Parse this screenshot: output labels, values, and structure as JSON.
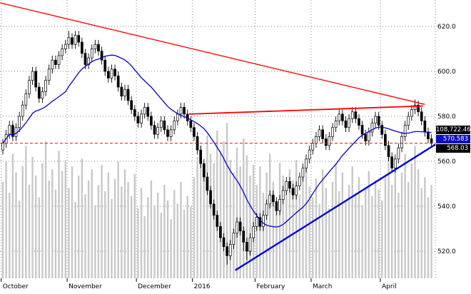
{
  "chart_data": {
    "type": "candlestick",
    "title": "",
    "xlabel": "",
    "ylabel": "",
    "grid": "dotted",
    "volume_color": "#c8c8c8",
    "y_axis": {
      "tick_values": [
        620,
        600,
        580,
        560,
        540,
        520
      ],
      "range": [
        510,
        632
      ]
    },
    "x_axis": {
      "labels": [
        {
          "text": "October",
          "index": 0
        },
        {
          "text": "November",
          "index": 20
        },
        {
          "text": "December",
          "index": 41
        },
        {
          "text": "2016",
          "index": 58
        },
        {
          "text": "February",
          "index": 77
        },
        {
          "text": "March",
          "index": 94
        },
        {
          "text": "April",
          "index": 115
        }
      ]
    },
    "candles": [
      [
        565,
        570,
        563,
        568
      ],
      [
        568,
        574,
        566,
        572
      ],
      [
        572,
        578,
        570,
        576
      ],
      [
        576,
        578,
        569,
        571
      ],
      [
        571,
        577,
        569,
        575
      ],
      [
        575,
        582,
        573,
        580
      ],
      [
        580,
        587,
        578,
        585
      ],
      [
        585,
        592,
        583,
        590
      ],
      [
        590,
        598,
        588,
        596
      ],
      [
        596,
        602,
        594,
        600
      ],
      [
        600,
        602,
        591,
        593
      ],
      [
        593,
        595,
        586,
        588
      ],
      [
        588,
        593,
        586,
        591
      ],
      [
        591,
        598,
        589,
        596
      ],
      [
        596,
        603,
        594,
        601
      ],
      [
        601,
        607,
        599,
        605
      ],
      [
        605,
        607,
        601,
        603
      ],
      [
        603,
        609,
        601,
        607
      ],
      [
        607,
        612,
        605,
        610
      ],
      [
        610,
        614,
        608,
        612
      ],
      [
        612,
        618,
        610,
        615
      ],
      [
        615,
        617,
        610,
        612
      ],
      [
        612,
        618,
        610,
        616
      ],
      [
        616,
        618,
        611,
        613
      ],
      [
        613,
        615,
        606,
        608
      ],
      [
        608,
        610,
        601,
        603
      ],
      [
        603,
        608,
        601,
        606
      ],
      [
        606,
        612,
        604,
        610
      ],
      [
        610,
        614,
        608,
        612
      ],
      [
        612,
        614,
        607,
        609
      ],
      [
        609,
        611,
        603,
        605
      ],
      [
        605,
        607,
        598,
        600
      ],
      [
        600,
        602,
        595,
        597
      ],
      [
        597,
        603,
        595,
        601
      ],
      [
        601,
        603,
        596,
        598
      ],
      [
        598,
        600,
        591,
        593
      ],
      [
        593,
        595,
        587,
        589
      ],
      [
        589,
        594,
        587,
        592
      ],
      [
        592,
        594,
        585,
        587
      ],
      [
        587,
        589,
        581,
        583
      ],
      [
        583,
        585,
        578,
        580
      ],
      [
        580,
        582,
        575,
        577
      ],
      [
        577,
        583,
        575,
        581
      ],
      [
        581,
        586,
        579,
        584
      ],
      [
        584,
        586,
        578,
        580
      ],
      [
        580,
        582,
        574,
        576
      ],
      [
        576,
        578,
        570,
        572
      ],
      [
        572,
        577,
        570,
        575
      ],
      [
        575,
        580,
        573,
        578
      ],
      [
        578,
        580,
        572,
        574
      ],
      [
        574,
        576,
        569,
        571
      ],
      [
        571,
        576,
        569,
        574
      ],
      [
        574,
        580,
        572,
        578
      ],
      [
        578,
        583,
        576,
        581
      ],
      [
        581,
        586,
        579,
        584
      ],
      [
        584,
        586,
        579,
        581
      ],
      [
        581,
        583,
        576,
        578
      ],
      [
        578,
        580,
        573,
        575
      ],
      [
        575,
        577,
        569,
        571
      ],
      [
        571,
        573,
        563,
        565
      ],
      [
        565,
        567,
        557,
        559
      ],
      [
        559,
        561,
        551,
        553
      ],
      [
        553,
        555,
        545,
        547
      ],
      [
        547,
        549,
        539,
        541
      ],
      [
        541,
        543,
        534,
        536
      ],
      [
        536,
        538,
        529,
        531
      ],
      [
        531,
        533,
        524,
        526
      ],
      [
        526,
        528,
        520,
        522
      ],
      [
        522,
        524,
        514,
        518
      ],
      [
        518,
        525,
        516,
        523
      ],
      [
        523,
        530,
        521,
        528
      ],
      [
        528,
        535,
        526,
        533
      ],
      [
        533,
        535,
        527,
        529
      ],
      [
        529,
        531,
        520,
        524
      ],
      [
        524,
        526,
        516,
        520
      ],
      [
        520,
        528,
        518,
        526
      ],
      [
        526,
        533,
        524,
        531
      ],
      [
        531,
        537,
        529,
        535
      ],
      [
        535,
        537,
        529,
        531
      ],
      [
        531,
        538,
        529,
        536
      ],
      [
        536,
        543,
        534,
        541
      ],
      [
        541,
        547,
        539,
        545
      ],
      [
        545,
        547,
        540,
        542
      ],
      [
        542,
        544,
        536,
        538
      ],
      [
        538,
        545,
        536,
        543
      ],
      [
        543,
        549,
        541,
        547
      ],
      [
        547,
        553,
        545,
        551
      ],
      [
        551,
        553,
        546,
        548
      ],
      [
        548,
        550,
        543,
        545
      ],
      [
        545,
        551,
        543,
        549
      ],
      [
        549,
        555,
        547,
        553
      ],
      [
        553,
        559,
        551,
        557
      ],
      [
        557,
        563,
        555,
        561
      ],
      [
        561,
        567,
        559,
        565
      ],
      [
        565,
        570,
        563,
        568
      ],
      [
        568,
        573,
        566,
        571
      ],
      [
        571,
        576,
        569,
        574
      ],
      [
        574,
        576,
        568,
        570
      ],
      [
        570,
        572,
        565,
        567
      ],
      [
        567,
        573,
        565,
        571
      ],
      [
        571,
        577,
        569,
        575
      ],
      [
        575,
        580,
        573,
        578
      ],
      [
        578,
        583,
        576,
        581
      ],
      [
        581,
        583,
        576,
        578
      ],
      [
        578,
        580,
        573,
        575
      ],
      [
        575,
        581,
        573,
        579
      ],
      [
        579,
        584,
        577,
        582
      ],
      [
        582,
        584,
        577,
        579
      ],
      [
        579,
        581,
        574,
        576
      ],
      [
        576,
        578,
        570,
        572
      ],
      [
        572,
        574,
        567,
        569
      ],
      [
        569,
        575,
        567,
        573
      ],
      [
        573,
        579,
        571,
        577
      ],
      [
        577,
        582,
        575,
        580
      ],
      [
        580,
        582,
        574,
        576
      ],
      [
        576,
        578,
        570,
        572
      ],
      [
        572,
        574,
        565,
        567
      ],
      [
        567,
        569,
        560,
        562
      ],
      [
        562,
        564,
        555,
        557
      ],
      [
        557,
        563,
        555,
        561
      ],
      [
        561,
        568,
        559,
        566
      ],
      [
        566,
        573,
        564,
        571
      ],
      [
        571,
        578,
        569,
        576
      ],
      [
        576,
        582,
        574,
        580
      ],
      [
        580,
        585,
        578,
        583
      ],
      [
        583,
        587.5,
        581,
        585
      ],
      [
        585,
        587,
        580,
        582
      ],
      [
        582,
        584,
        576,
        578
      ],
      [
        578,
        580,
        571,
        573
      ],
      [
        573,
        575,
        568,
        570
      ],
      [
        570,
        572,
        566,
        568.03
      ]
    ],
    "volumes": [
      0.62,
      0.75,
      0.55,
      0.8,
      0.68,
      0.5,
      0.72,
      0.85,
      0.6,
      0.78,
      0.66,
      0.52,
      0.74,
      0.88,
      0.63,
      0.7,
      0.57,
      0.82,
      0.69,
      0.76,
      0.58,
      0.72,
      0.49,
      0.66,
      0.77,
      0.54,
      0.63,
      0.7,
      0.47,
      0.6,
      0.73,
      0.56,
      0.68,
      0.51,
      0.64,
      0.75,
      0.59,
      0.7,
      0.62,
      0.53,
      0.67,
      0.45,
      0.58,
      0.4,
      0.52,
      0.63,
      0.47,
      0.55,
      0.42,
      0.6,
      0.5,
      0.38,
      0.57,
      0.48,
      0.62,
      0.44,
      0.53,
      0.46,
      0.65,
      0.78,
      0.85,
      0.7,
      0.92,
      0.8,
      0.74,
      0.95,
      0.82,
      0.88,
      1.0,
      0.76,
      0.68,
      0.84,
      0.72,
      0.9,
      0.79,
      0.66,
      0.73,
      0.6,
      0.72,
      0.55,
      0.68,
      0.8,
      0.62,
      0.5,
      0.74,
      0.66,
      0.58,
      0.7,
      0.63,
      0.76,
      0.54,
      0.67,
      0.71,
      0.59,
      0.52,
      0.64,
      0.48,
      0.7,
      0.58,
      0.45,
      0.62,
      0.74,
      0.56,
      0.68,
      0.5,
      0.6,
      0.72,
      0.55,
      0.65,
      0.47,
      0.58,
      0.69,
      0.53,
      0.63,
      0.57,
      0.5,
      0.66,
      0.78,
      0.6,
      0.72,
      0.55,
      0.68,
      0.8,
      0.62,
      0.74,
      0.85,
      0.7,
      0.58,
      0.65,
      0.52,
      0.6
    ],
    "overlays": {
      "moving_average": {
        "period": 20,
        "color": "#0000cc"
      },
      "trendlines": [
        {
          "name": "descending-resistance-trendline",
          "color": "#ff0000",
          "width": 1.4,
          "from": {
            "index": -0.9,
            "price": 630.5
          },
          "to": {
            "index": 128,
            "price": 585.3
          }
        },
        {
          "name": "flat-resistance-trendline",
          "color": "#ff0000",
          "width": 1.8,
          "from": {
            "index": 56.5,
            "price": 581.0
          },
          "to": {
            "index": 127.5,
            "price": 584.6
          }
        },
        {
          "name": "ascending-support-trendline",
          "color": "#0000cc",
          "width": 2.4,
          "from": {
            "index": 70.5,
            "price": 511.5
          },
          "to": {
            "index": 131.2,
            "price": 567.5
          }
        }
      ],
      "last_price_line": {
        "price": 568.03,
        "color": "#ff0000",
        "style": "dashed"
      }
    },
    "price_tags": [
      {
        "text": "108,722.46",
        "bg": "#000000",
        "fg": "#ffffff"
      },
      {
        "text": "570.583",
        "bg": "#0a0ac8",
        "fg": "#ffffff"
      },
      {
        "text": "568.03",
        "bg": "#000000",
        "fg": "#ffffff"
      }
    ]
  }
}
